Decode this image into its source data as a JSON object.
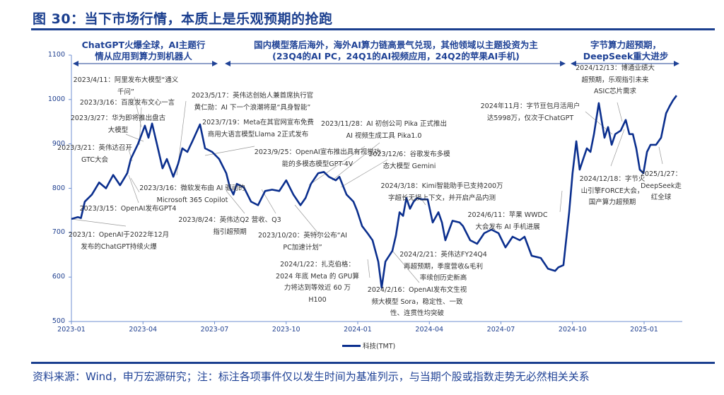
{
  "title": "图 30：当下市场行情，本质上是乐观预期的抢跑",
  "phases": [
    {
      "lines": [
        "ChatGPT火爆全球，AI主题行",
        "情从应用到算力到机器人"
      ]
    },
    {
      "lines": [
        "国内模型落后海外，海外AI算力链高景气兑现，其他领域以主题投资为主",
        "(23Q4的AI PC，24Q1的AI视频应用，24Q2的苹果AI手机)"
      ]
    },
    {
      "lines": [
        "字节算力超预期，",
        "DeepSeek重大进步"
      ]
    }
  ],
  "annotations": [
    {
      "lines": [
        "2023/4/11：阿里发布大模型“通义",
        "千问”"
      ]
    },
    {
      "lines": [
        "2023/3/16：百度发布文心一言"
      ]
    },
    {
      "lines": [
        "2023/3/27：华为即将推出盘古",
        "大模型"
      ]
    },
    {
      "lines": [
        "2023/3/21：英伟达召开",
        "GTC大会"
      ]
    },
    {
      "lines": [
        "2023/3/16：微软发布由 AI 驱动的",
        "Microsoft 365 Copilot"
      ]
    },
    {
      "lines": [
        "2023/3/15：OpenAI发布GPT4"
      ]
    },
    {
      "lines": [
        "2023/1：OpenAI于2022年12月",
        "发布的ChatGPT持续火爆"
      ]
    },
    {
      "lines": [
        "2023/5/17：英伟达创始人兼首席执行官",
        "黄仁勋：AI 下一个浪潮将是“具身智能”"
      ]
    },
    {
      "lines": [
        "2023/7/19：Meta在其官网宣布免费",
        "商用大语言模型Llama 2正式发布"
      ]
    },
    {
      "lines": [
        "2023/9/25：OpenAI宣布推出具有视觉功",
        "能的多模态模型GPT-4V"
      ]
    },
    {
      "lines": [
        "2023/8/24：英伟达Q2 营收、Q3",
        "指引超预期"
      ]
    },
    {
      "lines": [
        "2023/10/20：英特尔公布“AI",
        "PC加速计划”"
      ]
    },
    {
      "lines": [
        "2024/1/22：扎克伯格：",
        "2024 年底 Meta 的 GPU算",
        "力将达到等效近 60 万",
        "H100"
      ]
    },
    {
      "lines": [
        "2023/11/28：AI 初创公司 Pika 正式推出",
        "AI 视频生成工具 Pika1.0"
      ]
    },
    {
      "lines": [
        "2023/12/6：谷歌发布多模",
        "态大模型 Gemini"
      ]
    },
    {
      "lines": [
        "2024/3/18：Kimi智能助手已支持200万",
        "字超长无损上下文，并开启产品内测"
      ]
    },
    {
      "lines": [
        "2024/2/21：英伟达FY24Q4",
        "再超预期，季度营收&毛利",
        "率续创历史新高"
      ]
    },
    {
      "lines": [
        "2024/2/16：OpenAI发布文生视",
        "频大模型 Sora，稳定性、一致",
        "性、连贯性均突破"
      ]
    },
    {
      "lines": [
        "2024/6/11：苹果 WWDC",
        "大会发布 AI 手机进展"
      ]
    },
    {
      "lines": [
        "2024年11月：字节豆包月活用户",
        "达5998万，仅次于ChatGPT"
      ]
    },
    {
      "lines": [
        "2024/12/13：博通业绩大",
        "超预期，乐观指引未来",
        "ASIC芯片需求"
      ]
    },
    {
      "lines": [
        "2024/12/18：字节火",
        "山引擎FORCE大会，",
        "国产算力超预期"
      ]
    },
    {
      "lines": [
        "2025/1/27：",
        "DeepSeek走",
        "红全球"
      ]
    }
  ],
  "chart_data": {
    "type": "line",
    "title": "",
    "xlabel": "",
    "ylabel": "",
    "x_unit": "months since 2023-01",
    "x_ticks": [
      0,
      3,
      6,
      9,
      12,
      15,
      18,
      21,
      24
    ],
    "x_tick_labels": [
      "2023-01",
      "2023-04",
      "2023-07",
      "2023-10",
      "2024-01",
      "2024-04",
      "2024-07",
      "2024-10",
      "2025-01"
    ],
    "ylim": [
      500,
      1100
    ],
    "y_ticks": [
      500,
      600,
      700,
      800,
      900,
      1000,
      1100
    ],
    "y_tick_labels": [
      "500",
      "600",
      "700",
      "800",
      "900",
      "1000",
      "1100"
    ],
    "grid": false,
    "legend_position": "bottom",
    "series": [
      {
        "name": "科技(TMT)",
        "color": "#0b2f8e",
        "x": [
          0,
          0.27,
          0.4,
          0.56,
          0.86,
          1.16,
          1.45,
          1.75,
          2.04,
          2.34,
          2.49,
          2.79,
          3.08,
          3.23,
          3.38,
          3.59,
          3.82,
          4.0,
          4.27,
          4.47,
          4.65,
          4.86,
          5.07,
          5.39,
          5.6,
          5.9,
          6.19,
          6.49,
          6.64,
          6.79,
          6.93,
          7.23,
          7.53,
          7.82,
          8.12,
          8.41,
          8.71,
          9.0,
          9.3,
          9.6,
          9.81,
          10.04,
          10.34,
          10.58,
          10.79,
          11.08,
          11.23,
          11.53,
          11.82,
          11.97,
          12.18,
          12.41,
          12.62,
          12.86,
          13.0,
          13.16,
          13.45,
          13.6,
          13.75,
          13.9,
          14.04,
          14.19,
          14.34,
          14.49,
          14.7,
          14.93,
          15.14,
          15.38,
          15.53,
          15.67,
          15.97,
          16.27,
          16.41,
          16.71,
          17.0,
          17.3,
          17.6,
          17.9,
          18.19,
          18.49,
          18.79,
          18.99,
          19.29,
          19.67,
          19.97,
          20.27,
          20.41,
          20.62,
          20.86,
          21.0,
          21.16,
          21.3,
          21.45,
          21.6,
          21.75,
          21.9,
          22.1,
          22.34,
          22.49,
          22.64,
          22.79,
          23.02,
          23.23,
          23.38,
          23.53,
          23.67,
          23.82,
          23.97,
          24.12,
          24.27,
          24.5,
          24.71,
          24.92,
          25.07,
          25.21,
          25.36
        ],
        "values": [
          731,
          735,
          733,
          770,
          786,
          813,
          800,
          830,
          807,
          834,
          866,
          900,
          941,
          914,
          946,
          898,
          845,
          866,
          826,
          855,
          890,
          882,
          906,
          944,
          890,
          882,
          866,
          834,
          802,
          786,
          810,
          802,
          770,
          762,
          794,
          797,
          794,
          818,
          786,
          762,
          778,
          810,
          834,
          837,
          826,
          818,
          826,
          786,
          770,
          750,
          715,
          699,
          683,
          635,
          576,
          635,
          659,
          694,
          746,
          738,
          778,
          754,
          770,
          778,
          775,
          775,
          723,
          746,
          723,
          683,
          727,
          723,
          715,
          683,
          675,
          699,
          707,
          699,
          667,
          691,
          683,
          691,
          648,
          643,
          619,
          614,
          622,
          627,
          746,
          834,
          906,
          842,
          866,
          890,
          882,
          922,
          992,
          914,
          938,
          898,
          922,
          930,
          954,
          922,
          922,
          890,
          842,
          834,
          882,
          898,
          898,
          914,
          969,
          985,
          998,
          1009
        ]
      }
    ]
  },
  "legend": {
    "label": "科技(TMT)"
  },
  "footer": "资料来源：Wind，申万宏源研究；注：标注各项事件仅以发生时间为基准列示，与当期个股或指数走势无必然相关关系"
}
